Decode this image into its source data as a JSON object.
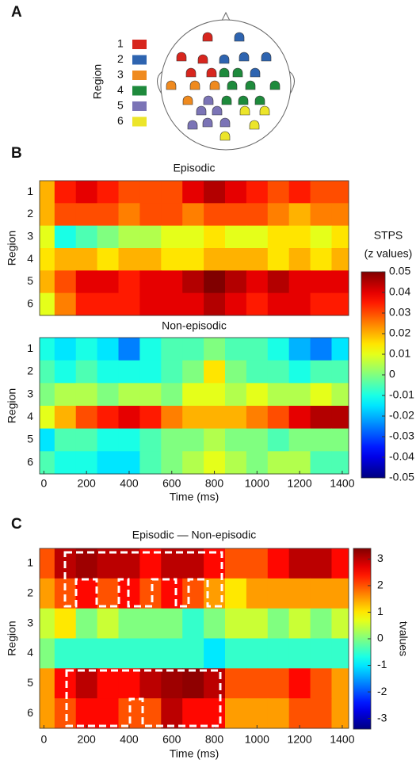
{
  "panel_labels": [
    "A",
    "B",
    "C"
  ],
  "region_legend": {
    "title": "Region",
    "regions": [
      {
        "name": "1",
        "color": "#d7261e"
      },
      {
        "name": "2",
        "color": "#2e64b0"
      },
      {
        "name": "3",
        "color": "#ef8a1f"
      },
      {
        "name": "4",
        "color": "#1e8a3c"
      },
      {
        "name": "5",
        "color": "#7b74b6"
      },
      {
        "name": "6",
        "color": "#ece52a"
      }
    ]
  },
  "chart_data": [
    {
      "type": "heatmap",
      "title": "Episodic",
      "ylabel": "Region",
      "categories": [
        "1",
        "2",
        "3",
        "4",
        "5",
        "6"
      ],
      "x": [
        0,
        100,
        200,
        300,
        400,
        500,
        600,
        700,
        800,
        900,
        1000,
        1100,
        1200,
        1300,
        1400
      ],
      "xlim": [
        -20,
        1430
      ],
      "clim": [
        -0.05,
        0.05
      ],
      "values": [
        [
          0.02,
          0.035,
          0.04,
          0.035,
          0.03,
          0.03,
          0.03,
          0.04,
          0.045,
          0.04,
          0.035,
          0.03,
          0.035,
          0.03,
          0.03
        ],
        [
          0.02,
          0.03,
          0.03,
          0.03,
          0.025,
          0.03,
          0.03,
          0.025,
          0.03,
          0.03,
          0.03,
          0.025,
          0.02,
          0.025,
          0.025
        ],
        [
          0.01,
          -0.01,
          -0.005,
          0,
          0.005,
          0.005,
          0.01,
          0.01,
          0.015,
          0.01,
          0.01,
          0.015,
          0.015,
          0.01,
          0.015
        ],
        [
          0.015,
          0.02,
          0.02,
          0.015,
          0.02,
          0.02,
          0.015,
          0.015,
          0.02,
          0.02,
          0.02,
          0.015,
          0.02,
          0.015,
          0.02
        ],
        [
          0.02,
          0.03,
          0.04,
          0.04,
          0.035,
          0.04,
          0.04,
          0.045,
          0.05,
          0.045,
          0.04,
          0.045,
          0.04,
          0.04,
          0.04
        ],
        [
          0.01,
          0.025,
          0.035,
          0.035,
          0.035,
          0.04,
          0.04,
          0.04,
          0.045,
          0.04,
          0.035,
          0.04,
          0.04,
          0.035,
          0.035
        ]
      ],
      "colorbar": {
        "title": [
          "STPS",
          "(z values)"
        ],
        "ticks": [
          0.05,
          0.04,
          0.03,
          0.02,
          0.01,
          0,
          -0.01,
          -0.02,
          -0.03,
          -0.04,
          -0.05
        ]
      }
    },
    {
      "type": "heatmap",
      "title": "Non-episodic",
      "ylabel": "Region",
      "xlabel": "Time (ms)",
      "categories": [
        "1",
        "2",
        "3",
        "4",
        "5",
        "6"
      ],
      "x": [
        0,
        100,
        200,
        300,
        400,
        500,
        600,
        700,
        800,
        900,
        1000,
        1100,
        1200,
        1300,
        1400
      ],
      "xlim": [
        -20,
        1430
      ],
      "xticks": [
        0,
        200,
        400,
        600,
        800,
        1000,
        1200,
        1400
      ],
      "clim": [
        -0.05,
        0.05
      ],
      "values": [
        [
          -0.01,
          -0.015,
          -0.01,
          -0.015,
          -0.025,
          -0.01,
          -0.005,
          -0.005,
          0,
          -0.005,
          -0.005,
          -0.01,
          -0.02,
          -0.025,
          -0.015
        ],
        [
          -0.005,
          -0.01,
          -0.005,
          -0.01,
          -0.01,
          -0.01,
          -0.005,
          0,
          0.015,
          0,
          -0.005,
          -0.005,
          -0.01,
          -0.005,
          -0.005
        ],
        [
          0,
          0.005,
          0.005,
          0,
          0.005,
          0.005,
          0,
          0.01,
          0.01,
          0.005,
          0.01,
          0.005,
          0.005,
          0.01,
          0.005
        ],
        [
          0.01,
          0.02,
          0.03,
          0.035,
          0.04,
          0.035,
          0.025,
          0.02,
          0.02,
          0.02,
          0.025,
          0.03,
          0.04,
          0.045,
          0.045
        ],
        [
          -0.015,
          -0.005,
          -0.005,
          -0.01,
          -0.01,
          -0.005,
          0,
          0,
          0.005,
          0,
          0,
          -0.005,
          0,
          0,
          0
        ],
        [
          -0.005,
          -0.01,
          -0.01,
          -0.015,
          -0.015,
          -0.005,
          0,
          0.005,
          0.01,
          0.005,
          0,
          0.005,
          0.005,
          -0.005,
          -0.005
        ]
      ]
    },
    {
      "type": "heatmap",
      "title": "Episodic — Non-episodic",
      "ylabel": "Region",
      "xlabel": "Time (ms)",
      "categories": [
        "1",
        "2",
        "3",
        "4",
        "5",
        "6"
      ],
      "x": [
        0,
        100,
        200,
        300,
        400,
        500,
        600,
        700,
        800,
        900,
        1000,
        1100,
        1200,
        1300,
        1400
      ],
      "xlim": [
        -20,
        1430
      ],
      "xticks": [
        0,
        200,
        400,
        600,
        800,
        1000,
        1200,
        1400
      ],
      "clim": [
        -3.4,
        3.4
      ],
      "values": [
        [
          2,
          3,
          3.2,
          3,
          3,
          2.5,
          3,
          3,
          2.5,
          2,
          2,
          2.5,
          3,
          3,
          2.5
        ],
        [
          1.5,
          2,
          2.5,
          2,
          2.5,
          2,
          2.5,
          2,
          1.5,
          1,
          1.5,
          1.5,
          1.5,
          1.5,
          1.5
        ],
        [
          0.5,
          1,
          0,
          0.5,
          0,
          0,
          0,
          -0.5,
          0,
          0.5,
          0.5,
          0,
          0.5,
          0,
          0.5
        ],
        [
          0,
          -0.5,
          -0.5,
          -0.5,
          -0.5,
          -0.5,
          -0.5,
          -0.5,
          -1,
          -0.5,
          -0.5,
          -0.5,
          -0.5,
          -0.5,
          -0.5
        ],
        [
          1.5,
          2.5,
          3,
          2.5,
          2.5,
          3,
          3.2,
          3.3,
          3,
          2,
          2,
          2,
          2.5,
          2,
          1.5
        ],
        [
          1.5,
          2,
          2.5,
          2.5,
          2,
          2,
          3,
          2.5,
          2.5,
          1.5,
          1.5,
          1.5,
          2,
          2,
          1.5
        ]
      ],
      "colorbar": {
        "title": [
          "tvalues"
        ],
        "ticks": [
          3,
          2,
          1,
          0,
          -1,
          -2,
          -3
        ]
      }
    }
  ]
}
